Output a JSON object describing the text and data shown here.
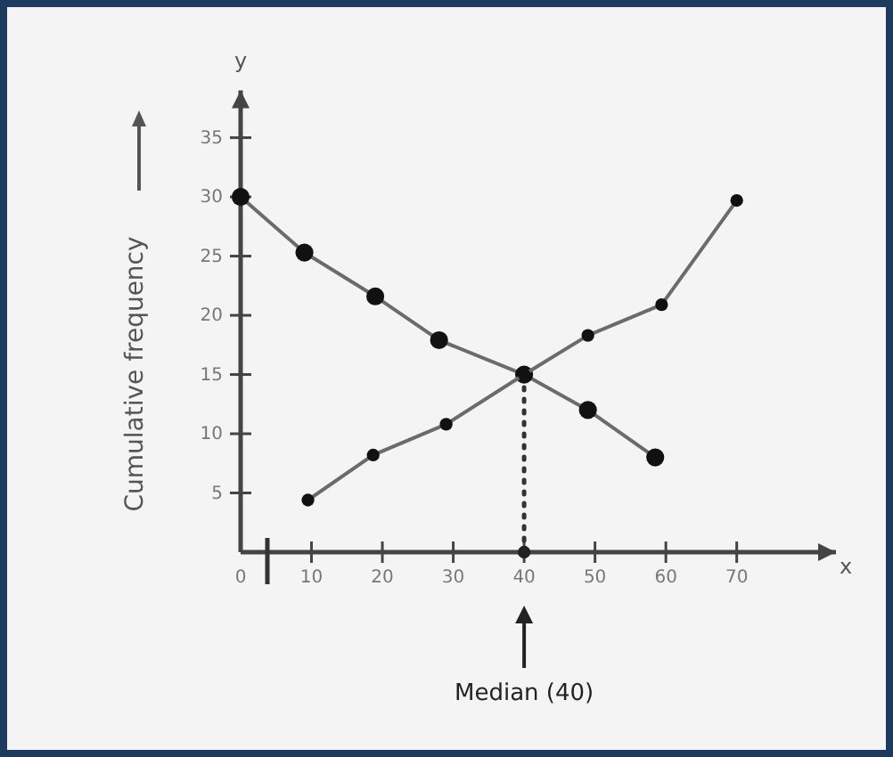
{
  "chart_data": {
    "type": "line",
    "xlabel": "x",
    "ylabel": "y",
    "xlim": [
      0,
      84
    ],
    "ylim": [
      0,
      39
    ],
    "xticks": [
      0,
      10,
      20,
      30,
      40,
      50,
      60,
      70
    ],
    "yticks": [
      5,
      10,
      15,
      20,
      25,
      30,
      35
    ],
    "grid": false,
    "marker": "circle",
    "line_style": "solid",
    "series": [
      {
        "color": "#6b6b6b",
        "x": [
          0,
          9,
          19,
          28,
          40,
          49,
          58.5
        ],
        "values": [
          30,
          25.3,
          21.6,
          17.9,
          15,
          12,
          8
        ]
      },
      {
        "color": "#6b6b6b",
        "x": [
          9.5,
          18.7,
          29,
          40,
          49,
          59.4,
          70
        ],
        "values": [
          4.4,
          8.2,
          10.8,
          15,
          18.3,
          20.9,
          29.7
        ]
      },
      {
        "type": "scatter",
        "color": "#222222",
        "x": [
          40
        ],
        "values": [
          0
        ]
      }
    ],
    "ref_lines": [
      {
        "axis": "x",
        "value": 40,
        "label": "Median (40)",
        "color": "#333333",
        "line_style": "dotted"
      }
    ],
    "annotations": [
      "Cumulative frequency"
    ]
  }
}
